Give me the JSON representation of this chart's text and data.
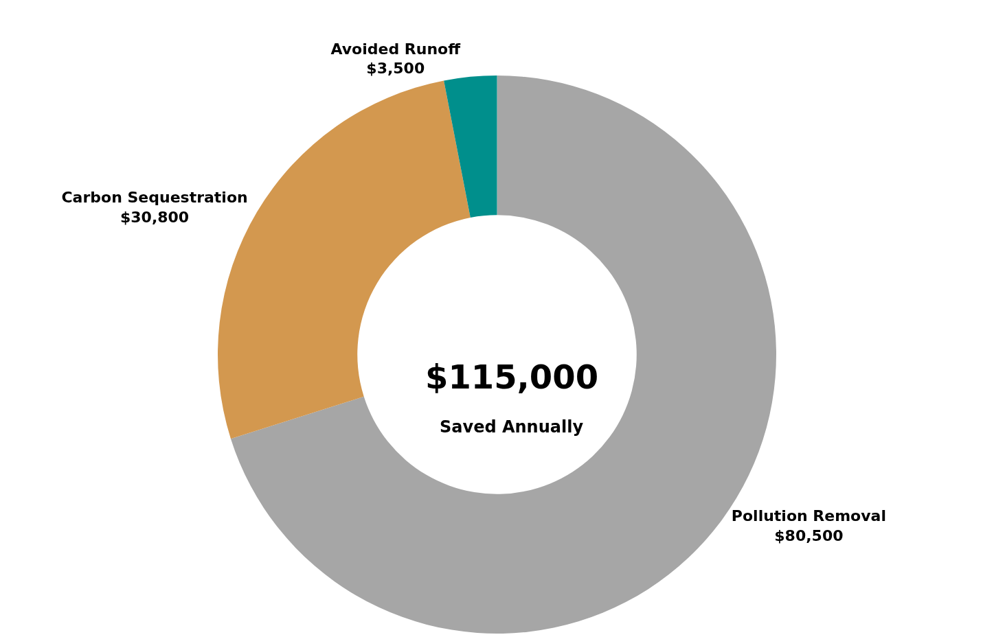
{
  "chart_data": {
    "type": "donut",
    "categories": [
      "Pollution Removal",
      "Carbon Sequestration",
      "Avoided Runoff"
    ],
    "values": [
      80500,
      30800,
      3500
    ],
    "value_labels": [
      "$80,500",
      "$30,800",
      "$3,500"
    ],
    "colors": [
      "#a6a6a6",
      "#d3984f",
      "#008f8c"
    ],
    "annotations": [
      "$115,000",
      "Saved Annually"
    ],
    "legend": false
  }
}
